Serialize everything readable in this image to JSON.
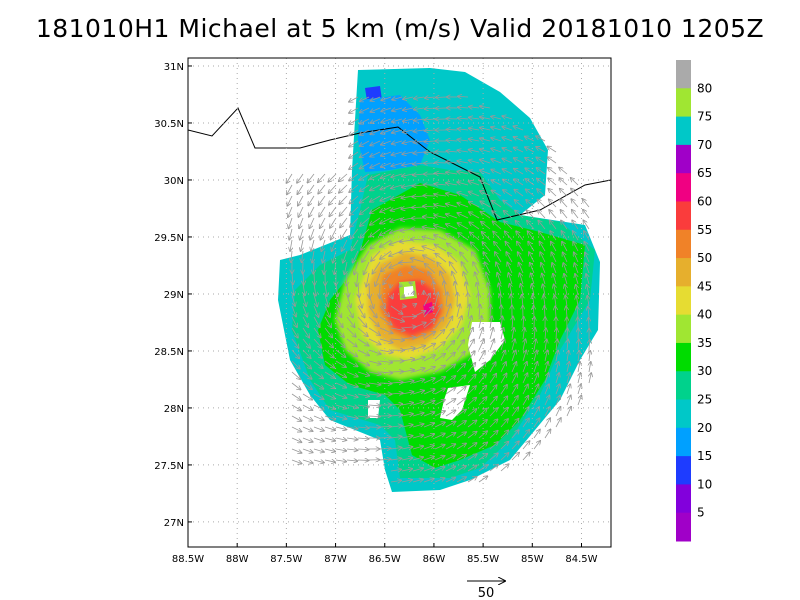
{
  "title": "181010H1 Michael at 5 km (m/s) Valid 20181010  1205Z",
  "chart_data": {
    "type": "heatmap",
    "title": "181010H1 Michael at 5 km (m/s) Valid 20181010  1205Z",
    "x_ticks": [
      "88.5W",
      "88W",
      "87.5W",
      "87W",
      "86.5W",
      "86W",
      "85.5W",
      "85W",
      "84.5W"
    ],
    "x_tick_values": [
      -88.5,
      -88.0,
      -87.5,
      -87.0,
      -86.5,
      -86.0,
      -85.5,
      -85.0,
      -84.5
    ],
    "y_ticks": [
      "27N",
      "27.5N",
      "28N",
      "28.5N",
      "29N",
      "29.5N",
      "30N",
      "30.5N",
      "31N"
    ],
    "y_tick_values": [
      27.0,
      27.5,
      28.0,
      28.5,
      29.0,
      29.5,
      30.0,
      30.5,
      31.0
    ],
    "xlim": [
      -88.5,
      -84.2
    ],
    "ylim": [
      26.78,
      31.07
    ],
    "grid": true,
    "colorbar": {
      "labels": [
        "5",
        "10",
        "15",
        "20",
        "25",
        "30",
        "35",
        "40",
        "45",
        "50",
        "55",
        "60",
        "65",
        "70",
        "75",
        "80"
      ],
      "colors": [
        "#a000c8",
        "#8200dc",
        "#1e3cff",
        "#00a0ff",
        "#00c8c8",
        "#00d28c",
        "#00dc00",
        "#a0e632",
        "#e6dc32",
        "#e6af2d",
        "#f08228",
        "#fa3c3c",
        "#f00082",
        "#a000c8",
        "#00c8c8",
        "#a0e632",
        "#aaaaaa"
      ]
    },
    "storm_center": {
      "lon": -86.27,
      "lat": 29.02
    },
    "max_wind_ms": 60,
    "vector_reference": {
      "label": "50",
      "value": 50
    }
  }
}
